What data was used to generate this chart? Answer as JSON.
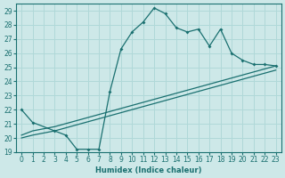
{
  "xlabel": "Humidex (Indice chaleur)",
  "background_color": "#cde8e8",
  "line_color": "#1a7070",
  "grid_color": "#b0d8d8",
  "xlim": [
    -0.5,
    23.5
  ],
  "ylim": [
    19,
    29.5
  ],
  "xticks": [
    0,
    1,
    2,
    3,
    4,
    5,
    6,
    7,
    8,
    9,
    10,
    11,
    12,
    13,
    14,
    15,
    16,
    17,
    18,
    19,
    20,
    21,
    22,
    23
  ],
  "yticks": [
    19,
    20,
    21,
    22,
    23,
    24,
    25,
    26,
    27,
    28,
    29
  ],
  "curve1_x": [
    0,
    1,
    3,
    4,
    5,
    6,
    7,
    8,
    9,
    10,
    11,
    12,
    13,
    14,
    15,
    16,
    17,
    18,
    19,
    20,
    21,
    22,
    23
  ],
  "curve1_y": [
    22.0,
    21.1,
    20.5,
    20.2,
    19.2,
    19.2,
    19.2,
    23.3,
    26.3,
    27.5,
    28.2,
    29.2,
    28.8,
    27.8,
    27.5,
    27.7,
    26.5,
    27.7,
    26.0,
    25.5,
    25.2,
    25.2,
    25.1
  ],
  "curve2_x": [
    0,
    1,
    3,
    23
  ],
  "curve2_y": [
    20.2,
    20.5,
    20.8,
    25.1
  ],
  "curve3_x": [
    0,
    1,
    3,
    23
  ],
  "curve3_y": [
    20.0,
    20.2,
    20.5,
    24.8
  ]
}
